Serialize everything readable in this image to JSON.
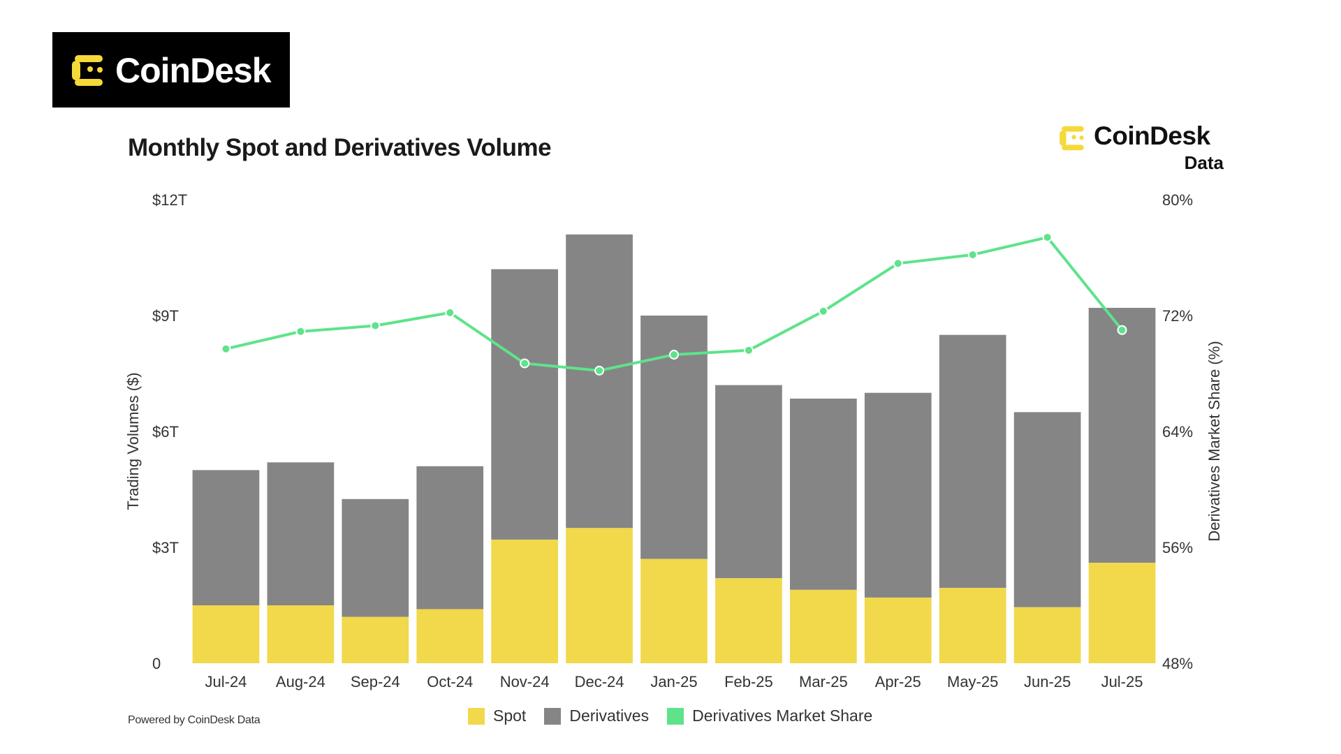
{
  "logo": {
    "text": "CoinDesk"
  },
  "brand": {
    "name": "CoinDesk",
    "sub": "Data"
  },
  "footer": {
    "powered_by": "Powered by CoinDesk Data"
  },
  "colors": {
    "spot": "#f2d84b",
    "derivatives": "#858585",
    "share_line": "#5ee38a",
    "logo_yellow": "#f5d93a"
  },
  "legend": [
    {
      "label": "Spot",
      "color": "#f2d84b"
    },
    {
      "label": "Derivatives",
      "color": "#858585"
    },
    {
      "label": "Derivatives Market Share",
      "color": "#5ee38a"
    }
  ],
  "chart_data": {
    "type": "bar",
    "stacked": true,
    "title": "Monthly Spot and Derivatives Volume",
    "xlabel": "",
    "ylabel": "Trading Volumes ($)",
    "y2label": "Derivatives Market Share (%)",
    "ylim": [
      0,
      12
    ],
    "y2lim": [
      48,
      80
    ],
    "y_ticks": [
      {
        "value": 0,
        "label": "0"
      },
      {
        "value": 3,
        "label": "$3T"
      },
      {
        "value": 6,
        "label": "$6T"
      },
      {
        "value": 9,
        "label": "$9T"
      },
      {
        "value": 12,
        "label": "$12T"
      }
    ],
    "y2_ticks": [
      {
        "value": 48,
        "label": "48%"
      },
      {
        "value": 56,
        "label": "56%"
      },
      {
        "value": 64,
        "label": "64%"
      },
      {
        "value": 72,
        "label": "72%"
      },
      {
        "value": 80,
        "label": "80%"
      }
    ],
    "categories": [
      "Jul-24",
      "Aug-24",
      "Sep-24",
      "Oct-24",
      "Nov-24",
      "Dec-24",
      "Jan-25",
      "Feb-25",
      "Mar-25",
      "Apr-25",
      "May-25",
      "Jun-25",
      "Jul-25"
    ],
    "series": [
      {
        "name": "Spot",
        "values": [
          1.5,
          1.5,
          1.2,
          1.4,
          3.2,
          3.5,
          2.7,
          2.2,
          1.9,
          1.7,
          1.95,
          1.45,
          2.6
        ]
      },
      {
        "name": "Derivatives",
        "values": [
          3.5,
          3.7,
          3.05,
          3.7,
          7.0,
          7.6,
          6.3,
          5.0,
          4.95,
          5.3,
          6.55,
          5.05,
          6.6
        ]
      },
      {
        "name": "Derivatives Market Share",
        "axis": "right",
        "values": [
          69.7,
          70.9,
          71.3,
          72.2,
          68.7,
          68.2,
          69.3,
          69.6,
          72.3,
          75.6,
          76.2,
          77.4,
          71.0
        ]
      }
    ]
  }
}
